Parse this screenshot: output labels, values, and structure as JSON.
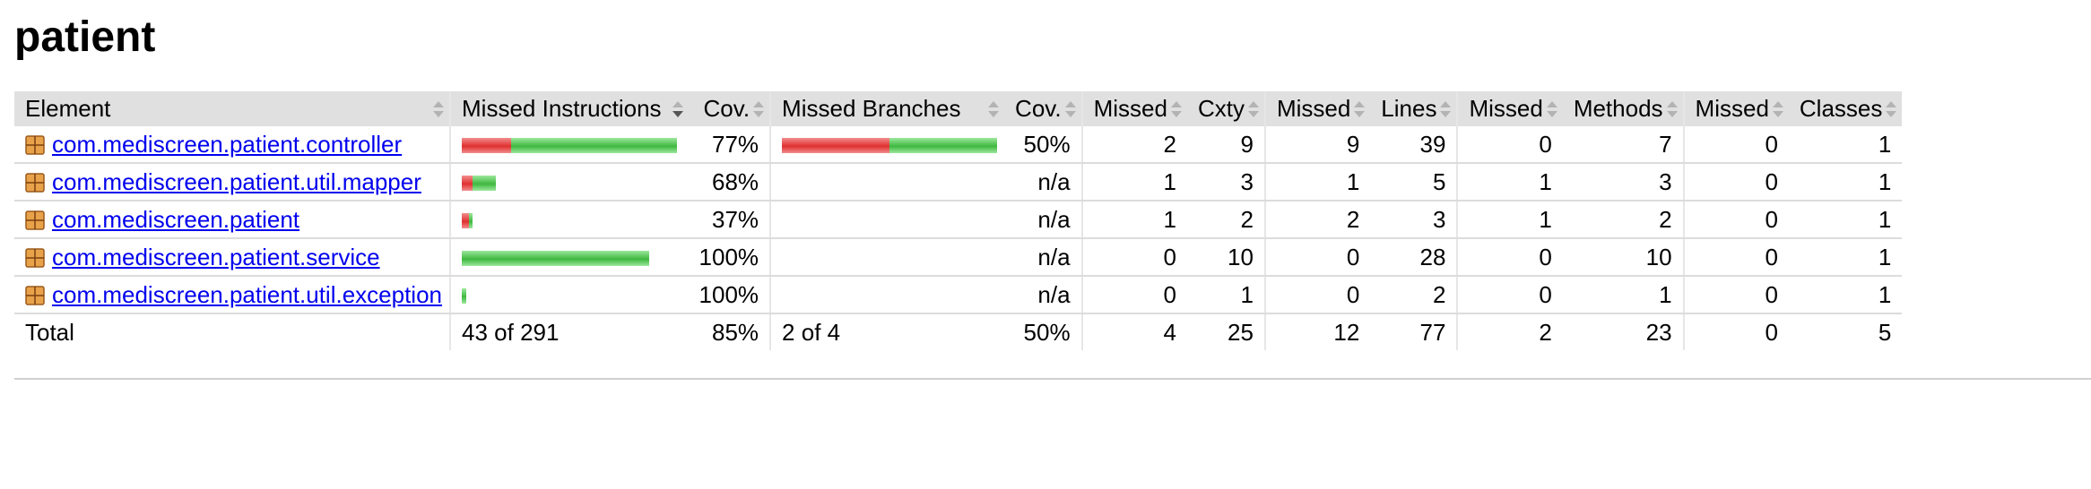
{
  "page_title": "patient",
  "columns": [
    "Element",
    "Missed Instructions",
    "Cov.",
    "Missed Branches",
    "Cov.",
    "Missed",
    "Cxty",
    "Missed",
    "Lines",
    "Missed",
    "Methods",
    "Missed",
    "Classes"
  ],
  "rows": [
    {
      "name": "com.mediscreen.patient.controller",
      "instr_missed_fraction": 0.23,
      "instr_bar_scale": 1.0,
      "instr_cov": "77%",
      "branch_missed_fraction": 0.5,
      "branch_bar_scale": 1.0,
      "branch_cov": "50%",
      "cxty_missed": "2",
      "cxty": "9",
      "lines_missed": "9",
      "lines": "39",
      "methods_missed": "0",
      "methods": "7",
      "classes_missed": "0",
      "classes": "1"
    },
    {
      "name": "com.mediscreen.patient.util.mapper",
      "instr_missed_fraction": 0.32,
      "instr_bar_scale": 0.16,
      "instr_cov": "68%",
      "branch_missed_fraction": null,
      "branch_bar_scale": 0,
      "branch_cov": "n/a",
      "cxty_missed": "1",
      "cxty": "3",
      "lines_missed": "1",
      "lines": "5",
      "methods_missed": "1",
      "methods": "3",
      "classes_missed": "0",
      "classes": "1"
    },
    {
      "name": "com.mediscreen.patient",
      "instr_missed_fraction": 0.63,
      "instr_bar_scale": 0.05,
      "instr_cov": "37%",
      "branch_missed_fraction": null,
      "branch_bar_scale": 0,
      "branch_cov": "n/a",
      "cxty_missed": "1",
      "cxty": "2",
      "lines_missed": "2",
      "lines": "3",
      "methods_missed": "1",
      "methods": "2",
      "classes_missed": "0",
      "classes": "1"
    },
    {
      "name": "com.mediscreen.patient.service",
      "instr_missed_fraction": 0.0,
      "instr_bar_scale": 0.87,
      "instr_cov": "100%",
      "branch_missed_fraction": null,
      "branch_bar_scale": 0,
      "branch_cov": "n/a",
      "cxty_missed": "0",
      "cxty": "10",
      "lines_missed": "0",
      "lines": "28",
      "methods_missed": "0",
      "methods": "10",
      "classes_missed": "0",
      "classes": "1"
    },
    {
      "name": "com.mediscreen.patient.util.exception",
      "instr_missed_fraction": 0.0,
      "instr_bar_scale": 0.02,
      "instr_cov": "100%",
      "branch_missed_fraction": null,
      "branch_bar_scale": 0,
      "branch_cov": "n/a",
      "cxty_missed": "0",
      "cxty": "1",
      "lines_missed": "0",
      "lines": "2",
      "methods_missed": "0",
      "methods": "1",
      "classes_missed": "0",
      "classes": "1"
    }
  ],
  "total": {
    "label": "Total",
    "instr": "43 of 291",
    "instr_cov": "85%",
    "branch": "2 of 4",
    "branch_cov": "50%",
    "cxty_missed": "4",
    "cxty": "25",
    "lines_missed": "12",
    "lines": "77",
    "methods_missed": "2",
    "methods": "23",
    "classes_missed": "0",
    "classes": "5"
  },
  "colors": {
    "header_bg": "#e0e0e0",
    "missed_bar": "#e03030",
    "covered_bar": "#3fb83f",
    "link": "#0000ee"
  }
}
